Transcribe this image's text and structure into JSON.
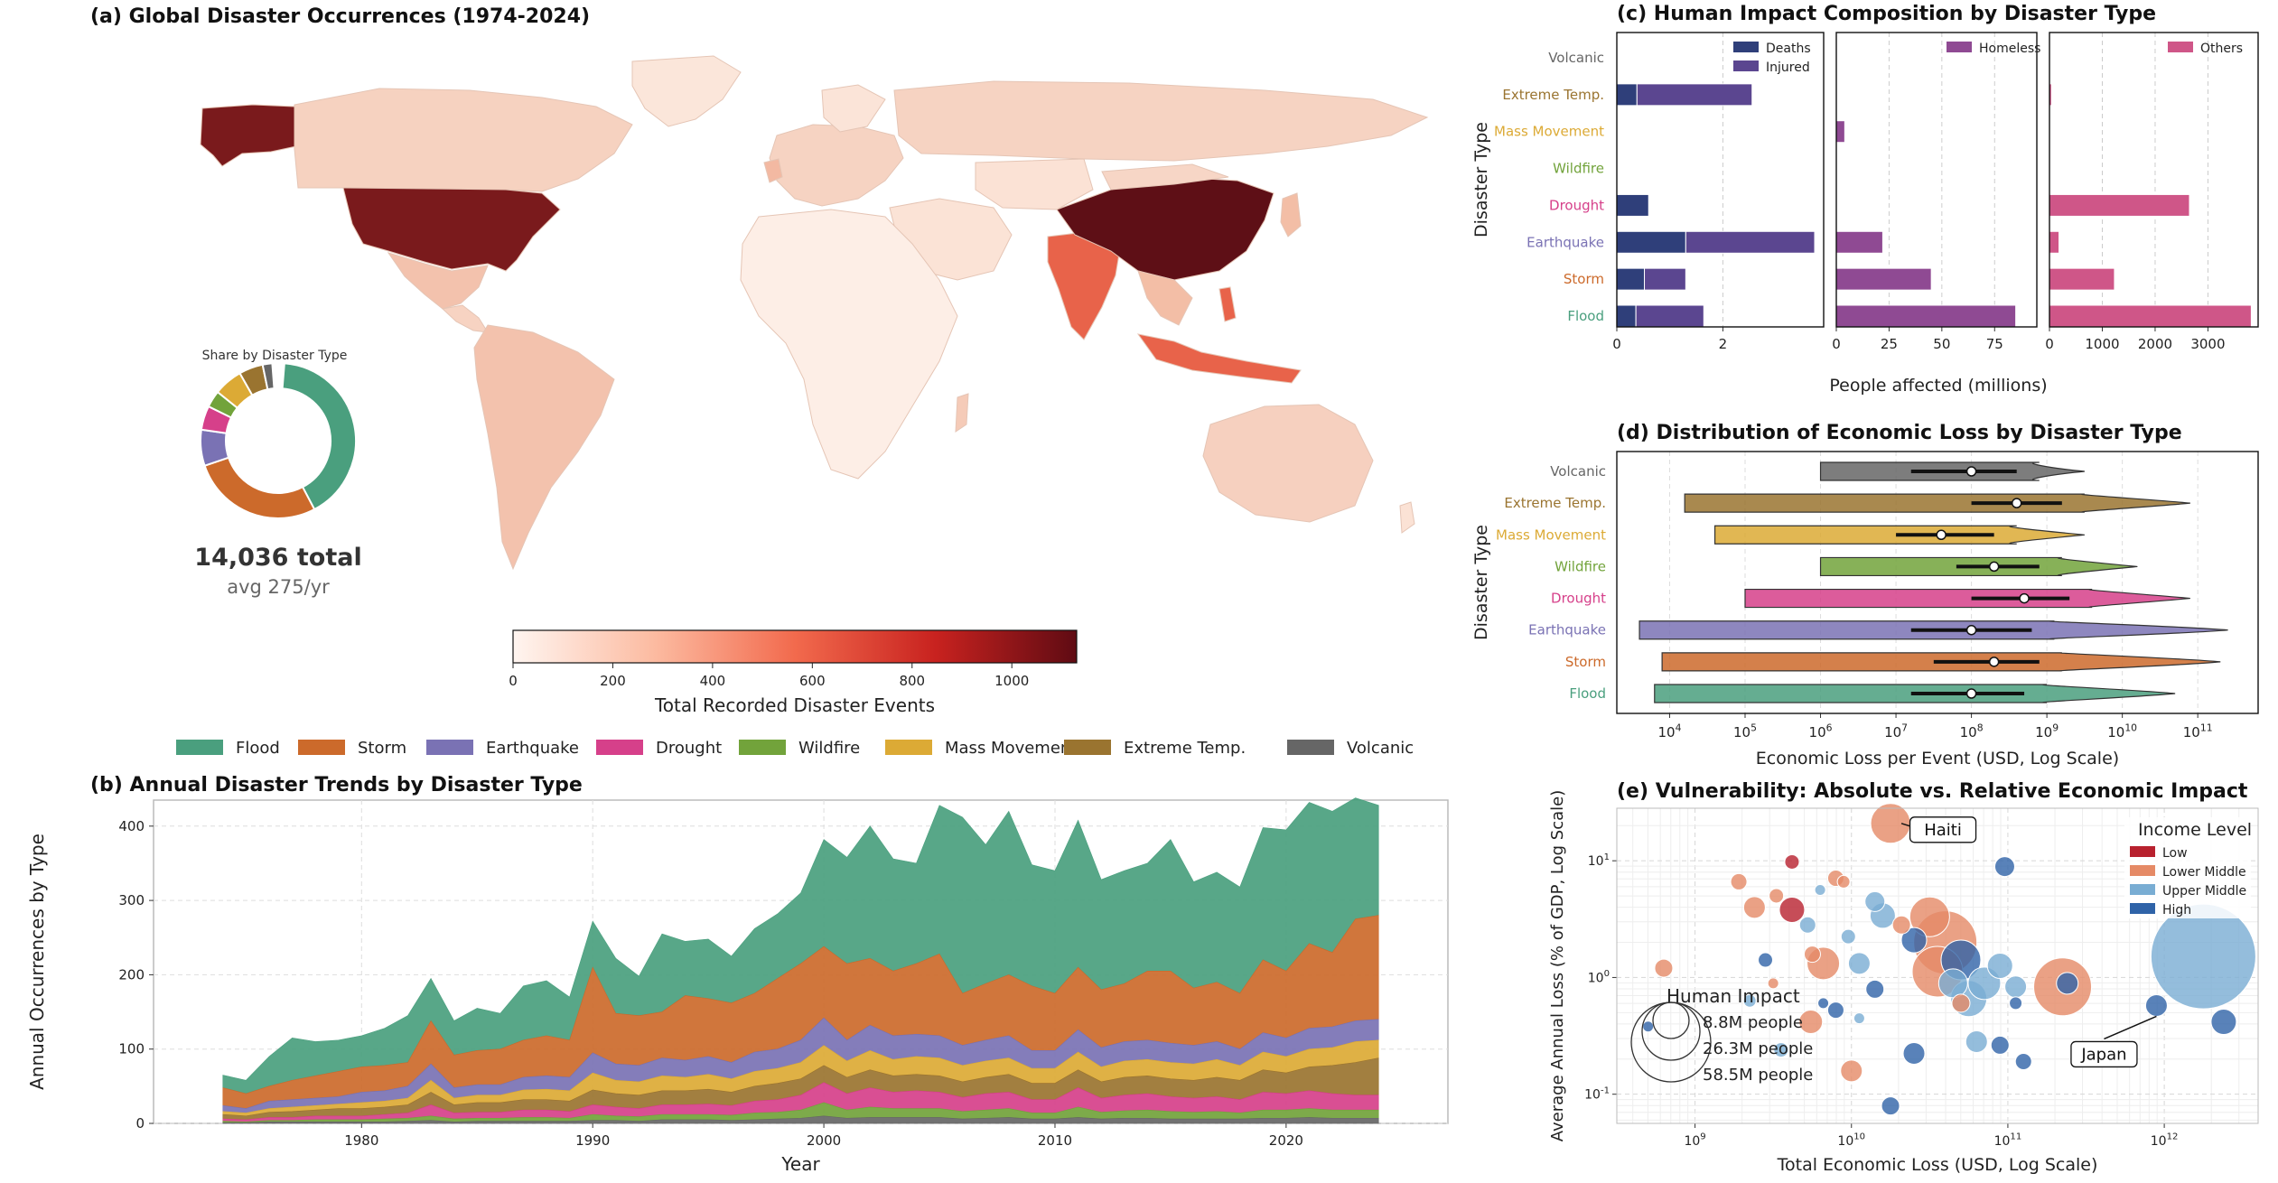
{
  "colors": {
    "Flood": "#4a9f7e",
    "Storm": "#cc6a2b",
    "Earthquake": "#7a72b4",
    "Drought": "#d6408a",
    "Wildfire": "#72a33b",
    "Mass Movement": "#dcaa35",
    "Extreme Temp.": "#9a7430",
    "Volcanic": "#666666",
    "Deaths": "#2f3f7a",
    "Injured": "#5b4690",
    "Homeless": "#8f4a93",
    "Others": "#cf5688"
  },
  "panel_a": {
    "title": "(a) Global Disaster Occurrences (1974-2024)",
    "donut_title": "Share by Disaster Type",
    "total_label": "14,036 total",
    "avg_label": "avg 275/yr",
    "colorbar_label": "Total Recorded Disaster Events",
    "colorbar_ticks": [
      "0",
      "200",
      "400",
      "600",
      "800",
      "1000"
    ],
    "colorbar_max": 1130,
    "legend": [
      "Flood",
      "Storm",
      "Earthquake",
      "Drought",
      "Wildfire",
      "Mass Movement",
      "Extreme Temp.",
      "Volcanic"
    ]
  },
  "chart_data": [
    {
      "type": "area",
      "title": "(b) Annual Disaster Trends by Disaster Type",
      "xlabel": "Year",
      "ylabel": "Annual Occurrences by Type",
      "xlim": [
        1971,
        2027
      ],
      "ylim": [
        0,
        400
      ],
      "x_ticks": [
        "1980",
        "1990",
        "2000",
        "2010",
        "2020"
      ],
      "y_ticks": [
        "0",
        "100",
        "200",
        "300",
        "400"
      ],
      "x": [
        1974,
        1975,
        1976,
        1977,
        1978,
        1979,
        1980,
        1981,
        1982,
        1983,
        1984,
        1985,
        1986,
        1987,
        1988,
        1989,
        1990,
        1991,
        1992,
        1993,
        1994,
        1995,
        1996,
        1997,
        1998,
        1999,
        2000,
        2001,
        2002,
        2003,
        2004,
        2005,
        2006,
        2007,
        2008,
        2009,
        2010,
        2011,
        2012,
        2013,
        2014,
        2015,
        2016,
        2017,
        2018,
        2019,
        2020,
        2021,
        2022,
        2023,
        2024
      ],
      "total": [
        65,
        58,
        90,
        115,
        110,
        112,
        118,
        128,
        145,
        195,
        138,
        155,
        148,
        185,
        192,
        170,
        272,
        222,
        198,
        255,
        245,
        248,
        225,
        262,
        282,
        310,
        382,
        358,
        400,
        356,
        350,
        428,
        412,
        375,
        420,
        348,
        340,
        408,
        328,
        340,
        350,
        382,
        325,
        338,
        318,
        398,
        395,
        432,
        420,
        438,
        428
      ],
      "storm_cum": [
        48,
        40,
        50,
        58,
        64,
        70,
        76,
        78,
        82,
        138,
        92,
        98,
        100,
        112,
        118,
        112,
        210,
        148,
        145,
        150,
        172,
        168,
        162,
        175,
        195,
        215,
        238,
        215,
        222,
        205,
        215,
        228,
        175,
        188,
        200,
        185,
        175,
        210,
        180,
        188,
        205,
        205,
        182,
        190,
        175,
        220,
        205,
        242,
        230,
        275,
        280
      ],
      "eq_cum": [
        24,
        20,
        30,
        32,
        34,
        36,
        42,
        44,
        50,
        80,
        48,
        52,
        52,
        62,
        64,
        62,
        95,
        80,
        78,
        88,
        85,
        90,
        82,
        96,
        100,
        112,
        142,
        112,
        132,
        118,
        120,
        118,
        105,
        112,
        118,
        98,
        98,
        126,
        102,
        110,
        112,
        108,
        105,
        110,
        100,
        122,
        115,
        128,
        130,
        138,
        140
      ],
      "mm_cum": [
        16,
        14,
        20,
        22,
        24,
        26,
        28,
        30,
        34,
        58,
        34,
        38,
        38,
        45,
        46,
        44,
        68,
        58,
        56,
        64,
        62,
        66,
        60,
        70,
        74,
        82,
        105,
        84,
        98,
        86,
        90,
        88,
        78,
        84,
        88,
        74,
        74,
        96,
        76,
        84,
        86,
        82,
        80,
        86,
        78,
        96,
        90,
        100,
        102,
        110,
        112
      ],
      "et_cum": [
        12,
        10,
        15,
        16,
        18,
        20,
        20,
        22,
        25,
        42,
        25,
        28,
        28,
        32,
        32,
        30,
        45,
        40,
        38,
        44,
        44,
        46,
        42,
        50,
        54,
        60,
        78,
        62,
        72,
        64,
        66,
        64,
        56,
        62,
        66,
        54,
        54,
        72,
        56,
        62,
        64,
        60,
        58,
        62,
        58,
        72,
        68,
        76,
        78,
        82,
        88
      ],
      "dr_cum": [
        6,
        5,
        8,
        8,
        10,
        10,
        10,
        12,
        14,
        25,
        14,
        15,
        15,
        18,
        18,
        16,
        25,
        22,
        20,
        25,
        25,
        26,
        24,
        30,
        32,
        38,
        55,
        40,
        48,
        42,
        44,
        42,
        35,
        40,
        42,
        32,
        32,
        48,
        34,
        38,
        40,
        36,
        34,
        36,
        32,
        42,
        40,
        44,
        40,
        38,
        38
      ],
      "wf_cum": [
        3,
        2,
        4,
        4,
        5,
        5,
        5,
        6,
        7,
        10,
        6,
        7,
        7,
        8,
        8,
        7,
        12,
        10,
        9,
        12,
        12,
        12,
        11,
        14,
        15,
        18,
        28,
        18,
        22,
        20,
        20,
        20,
        16,
        18,
        20,
        14,
        14,
        22,
        15,
        17,
        18,
        16,
        15,
        16,
        14,
        18,
        18,
        20,
        18,
        18,
        18
      ],
      "vol_cum": [
        1,
        1,
        2,
        2,
        2,
        2,
        2,
        2,
        3,
        4,
        2,
        3,
        3,
        3,
        3,
        3,
        4,
        4,
        3,
        5,
        5,
        5,
        4,
        5,
        6,
        7,
        10,
        7,
        8,
        8,
        8,
        8,
        6,
        7,
        8,
        6,
        6,
        8,
        6,
        7,
        7,
        6,
        6,
        6,
        6,
        7,
        7,
        8,
        7,
        7,
        7
      ]
    },
    {
      "type": "bar",
      "title": "(c) Human Impact Composition by Disaster Type",
      "xlabel": "People affected (millions)",
      "ylabel": "Disaster Type",
      "categories": [
        "Volcanic",
        "Extreme Temp.",
        "Mass Movement",
        "Wildfire",
        "Drought",
        "Earthquake",
        "Storm",
        "Flood"
      ],
      "subpanels": [
        {
          "legend": [
            "Deaths",
            "Injured"
          ],
          "xlim": [
            0,
            3.9
          ],
          "x_ticks": [
            "0",
            "2"
          ],
          "tick_vals": [
            0,
            2
          ],
          "series": [
            {
              "name": "Deaths",
              "values": [
                0.0,
                0.38,
                0.0,
                0.0,
                0.6,
                1.3,
                0.52,
                0.36
              ]
            },
            {
              "name": "Injured",
              "values": [
                0.0,
                2.17,
                0.0,
                0.0,
                0.0,
                2.43,
                0.78,
                1.28
              ]
            }
          ]
        },
        {
          "legend": [
            "Homeless"
          ],
          "xlim": [
            0,
            95
          ],
          "x_ticks": [
            "0",
            "25",
            "50",
            "75"
          ],
          "tick_vals": [
            0,
            25,
            50,
            75
          ],
          "series": [
            {
              "name": "Homeless",
              "values": [
                0,
                0,
                4,
                0,
                0,
                22,
                45,
                85
              ]
            }
          ]
        },
        {
          "legend": [
            "Others"
          ],
          "xlim": [
            0,
            3950
          ],
          "x_ticks": [
            "0",
            "1000",
            "2000",
            "3000",
            "4000"
          ],
          "tick_vals": [
            0,
            1000,
            2000,
            3000,
            4000
          ],
          "series": [
            {
              "name": "Others",
              "values": [
                0,
                40,
                0,
                0,
                2650,
                180,
                1230,
                3820
              ]
            }
          ]
        }
      ]
    },
    {
      "type": "violin",
      "title": "(d) Distribution of Economic Loss by Disaster Type",
      "xlabel": "Economic Loss per Event (USD, Log Scale)",
      "ylabel": "Disaster Type",
      "x_scale": "log",
      "xlim_log10": [
        3.3,
        11.8
      ],
      "x_ticks": [
        "10^4",
        "10^5",
        "10^6",
        "10^7",
        "10^8",
        "10^9",
        "10^10",
        "10^11"
      ],
      "categories": [
        "Volcanic",
        "Extreme Temp.",
        "Mass Movement",
        "Wildfire",
        "Drought",
        "Earthquake",
        "Storm",
        "Flood"
      ],
      "min_log10": [
        6.0,
        4.2,
        4.6,
        6.0,
        5.0,
        3.6,
        3.9,
        3.8
      ],
      "max_log10": [
        9.5,
        10.9,
        9.5,
        10.2,
        10.9,
        11.4,
        11.3,
        10.7
      ],
      "q1_log10": [
        7.2,
        8.0,
        7.0,
        7.8,
        8.0,
        7.2,
        7.5,
        7.2
      ],
      "median_log10": [
        8.0,
        8.6,
        7.6,
        8.3,
        8.7,
        8.0,
        8.3,
        8.0
      ],
      "q3_log10": [
        8.6,
        9.2,
        8.3,
        8.9,
        9.3,
        8.8,
        8.9,
        8.7
      ]
    },
    {
      "type": "scatter",
      "title": "(e) Vulnerability: Absolute vs. Relative Economic Impact",
      "xlabel": "Total Economic Loss (USD, Log Scale)",
      "ylabel": "Average Annual Loss (% of GDP, Log Scale)",
      "x_scale": "log",
      "y_scale": "log",
      "xlim_log10": [
        8.5,
        12.6
      ],
      "ylim_log10": [
        -1.25,
        1.45
      ],
      "x_ticks": [
        "10^9",
        "10^10",
        "10^11",
        "10^12"
      ],
      "y_ticks": [
        "10^-1",
        "10^0",
        "10^1"
      ],
      "legend_title": "Income Level",
      "legend": [
        "Low",
        "Lower Middle",
        "Upper Middle",
        "High"
      ],
      "legend_colors": [
        "#b8212e",
        "#e58a66",
        "#79add3",
        "#2f63a8"
      ],
      "size_legend_title": "Human Impact",
      "size_legend": [
        "8.8M people",
        "26.3M people",
        "58.5M people"
      ],
      "annotations": [
        {
          "text": "Haiti",
          "x_log10": 10.25,
          "y_log10": 1.32
        },
        {
          "text": "Japan",
          "x_log10": 11.95,
          "y_log10": -0.24
        }
      ],
      "points": [
        {
          "x": 10.25,
          "y": 1.32,
          "g": 1,
          "s": 22
        },
        {
          "x": 9.28,
          "y": 0.82,
          "g": 1,
          "s": 9
        },
        {
          "x": 9.62,
          "y": 0.99,
          "g": 0,
          "s": 8
        },
        {
          "x": 9.38,
          "y": 0.6,
          "g": 1,
          "s": 12
        },
        {
          "x": 9.52,
          "y": 0.7,
          "g": 1,
          "s": 8
        },
        {
          "x": 9.82,
          "y": 0.12,
          "g": 1,
          "s": 18
        },
        {
          "x": 9.5,
          "y": -0.05,
          "g": 1,
          "s": 6
        },
        {
          "x": 9.74,
          "y": -0.38,
          "g": 1,
          "s": 13
        },
        {
          "x": 9.82,
          "y": -0.22,
          "g": 3,
          "s": 6
        },
        {
          "x": 9.98,
          "y": 0.35,
          "g": 2,
          "s": 8
        },
        {
          "x": 10.2,
          "y": 0.53,
          "g": 2,
          "s": 14
        },
        {
          "x": 10.5,
          "y": 0.52,
          "g": 1,
          "s": 22
        },
        {
          "x": 10.4,
          "y": 0.32,
          "g": 3,
          "s": 14
        },
        {
          "x": 10.6,
          "y": 0.3,
          "g": 1,
          "s": 35
        },
        {
          "x": 10.55,
          "y": 0.05,
          "g": 1,
          "s": 28
        },
        {
          "x": 10.7,
          "y": 0.15,
          "g": 3,
          "s": 22
        },
        {
          "x": 10.75,
          "y": -0.18,
          "g": 2,
          "s": 20
        },
        {
          "x": 10.85,
          "y": -0.05,
          "g": 2,
          "s": 18
        },
        {
          "x": 11.05,
          "y": -0.08,
          "g": 2,
          "s": 12
        },
        {
          "x": 10.98,
          "y": 0.95,
          "g": 3,
          "s": 11
        },
        {
          "x": 11.35,
          "y": -0.08,
          "g": 1,
          "s": 32
        },
        {
          "x": 11.38,
          "y": -0.05,
          "g": 3,
          "s": 12
        },
        {
          "x": 12.25,
          "y": 0.18,
          "g": 2,
          "s": 58
        },
        {
          "x": 12.38,
          "y": -0.38,
          "g": 3,
          "s": 14
        },
        {
          "x": 11.95,
          "y": -0.24,
          "g": 3,
          "s": 12
        },
        {
          "x": 10.4,
          "y": -0.65,
          "g": 3,
          "s": 12
        },
        {
          "x": 10.8,
          "y": -0.55,
          "g": 2,
          "s": 12
        },
        {
          "x": 10.95,
          "y": -0.58,
          "g": 3,
          "s": 10
        },
        {
          "x": 10.05,
          "y": 0.12,
          "g": 2,
          "s": 12
        },
        {
          "x": 9.9,
          "y": -0.28,
          "g": 3,
          "s": 9
        },
        {
          "x": 9.62,
          "y": 0.58,
          "g": 0,
          "s": 14
        },
        {
          "x": 9.75,
          "y": 0.2,
          "g": 1,
          "s": 9
        },
        {
          "x": 10.15,
          "y": 0.65,
          "g": 2,
          "s": 11
        },
        {
          "x": 10.7,
          "y": -0.22,
          "g": 1,
          "s": 10
        },
        {
          "x": 9.95,
          "y": 0.82,
          "g": 1,
          "s": 7
        },
        {
          "x": 10.32,
          "y": 0.45,
          "g": 1,
          "s": 10
        },
        {
          "x": 10.15,
          "y": -0.1,
          "g": 3,
          "s": 10
        },
        {
          "x": 9.72,
          "y": 0.45,
          "g": 2,
          "s": 9
        },
        {
          "x": 10.0,
          "y": -0.8,
          "g": 1,
          "s": 12
        },
        {
          "x": 10.25,
          "y": -1.1,
          "g": 3,
          "s": 10
        },
        {
          "x": 9.9,
          "y": 0.85,
          "g": 1,
          "s": 9
        },
        {
          "x": 11.1,
          "y": -0.72,
          "g": 3,
          "s": 9
        },
        {
          "x": 9.45,
          "y": 0.15,
          "g": 3,
          "s": 8
        },
        {
          "x": 10.65,
          "y": -0.05,
          "g": 2,
          "s": 16
        },
        {
          "x": 10.95,
          "y": 0.1,
          "g": 2,
          "s": 14
        },
        {
          "x": 9.35,
          "y": -0.2,
          "g": 2,
          "s": 7
        },
        {
          "x": 8.8,
          "y": 0.08,
          "g": 1,
          "s": 10
        },
        {
          "x": 8.7,
          "y": -0.42,
          "g": 3,
          "s": 6
        },
        {
          "x": 11.05,
          "y": -0.22,
          "g": 3,
          "s": 7
        },
        {
          "x": 10.05,
          "y": -0.35,
          "g": 2,
          "s": 6
        },
        {
          "x": 9.55,
          "y": -0.62,
          "g": 2,
          "s": 8
        },
        {
          "x": 9.8,
          "y": 0.75,
          "g": 2,
          "s": 6
        }
      ]
    }
  ]
}
